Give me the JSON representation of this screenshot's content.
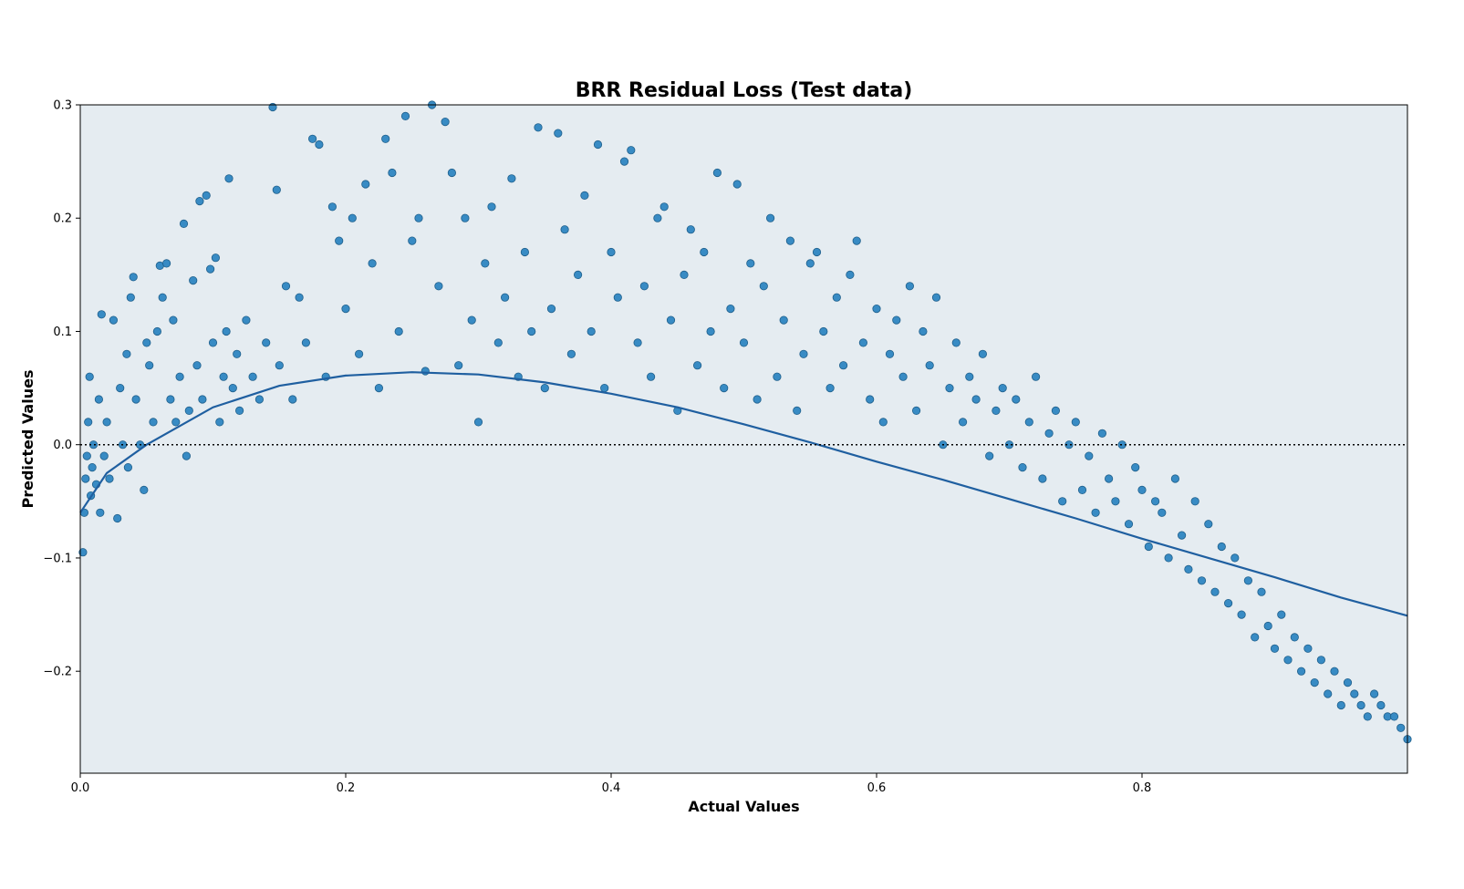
{
  "chart_data": {
    "type": "scatter",
    "title": "BRR Residual Loss (Test data)",
    "xlabel": "Actual Values",
    "ylabel": "Predicted Values",
    "xlim": [
      0.0,
      1.0
    ],
    "ylim": [
      -0.29,
      0.3
    ],
    "xticks": [
      0.0,
      0.2,
      0.4,
      0.6,
      0.8
    ],
    "xtick_labels": [
      "0.0",
      "0.2",
      "0.4",
      "0.6",
      "0.8"
    ],
    "yticks": [
      -0.2,
      -0.1,
      0.0,
      0.1,
      0.2,
      0.3
    ],
    "ytick_labels": [
      "−0.2",
      "−0.1",
      "0.0",
      "0.1",
      "0.2",
      "0.3"
    ],
    "background_color": "#e5ecf1",
    "point_color": "#2e86c1",
    "point_edge_color": "#1f5f8b",
    "line_color": "#1f5fa0",
    "reference_line": {
      "y": 0.0,
      "style": "dotted",
      "color": "#000000"
    },
    "grid": false,
    "legend": "none",
    "fit_line": {
      "x": [
        0.0,
        0.02,
        0.05,
        0.1,
        0.15,
        0.2,
        0.25,
        0.3,
        0.35,
        0.4,
        0.45,
        0.5,
        0.55,
        0.6,
        0.65,
        0.7,
        0.75,
        0.8,
        0.85,
        0.9,
        0.95,
        1.0
      ],
      "y": [
        -0.06,
        -0.025,
        0.0,
        0.033,
        0.052,
        0.061,
        0.064,
        0.062,
        0.055,
        0.045,
        0.033,
        0.018,
        0.002,
        -0.015,
        -0.031,
        -0.048,
        -0.065,
        -0.083,
        -0.1,
        -0.117,
        -0.135,
        -0.151
      ]
    },
    "series": [
      {
        "points": [
          [
            0.002,
            -0.095
          ],
          [
            0.003,
            -0.06
          ],
          [
            0.004,
            -0.03
          ],
          [
            0.005,
            -0.01
          ],
          [
            0.006,
            0.02
          ],
          [
            0.007,
            0.06
          ],
          [
            0.008,
            -0.045
          ],
          [
            0.009,
            -0.02
          ],
          [
            0.01,
            0.0
          ],
          [
            0.012,
            -0.035
          ],
          [
            0.014,
            0.04
          ],
          [
            0.015,
            -0.06
          ],
          [
            0.016,
            0.115
          ],
          [
            0.018,
            -0.01
          ],
          [
            0.02,
            0.02
          ],
          [
            0.022,
            -0.03
          ],
          [
            0.025,
            0.11
          ],
          [
            0.028,
            -0.065
          ],
          [
            0.03,
            0.05
          ],
          [
            0.032,
            0.0
          ],
          [
            0.035,
            0.08
          ],
          [
            0.036,
            -0.02
          ],
          [
            0.038,
            0.13
          ],
          [
            0.04,
            0.148
          ],
          [
            0.042,
            0.04
          ],
          [
            0.045,
            0.0
          ],
          [
            0.048,
            -0.04
          ],
          [
            0.05,
            0.09
          ],
          [
            0.052,
            0.07
          ],
          [
            0.055,
            0.02
          ],
          [
            0.058,
            0.1
          ],
          [
            0.06,
            0.158
          ],
          [
            0.062,
            0.13
          ],
          [
            0.065,
            0.16
          ],
          [
            0.068,
            0.04
          ],
          [
            0.07,
            0.11
          ],
          [
            0.072,
            0.02
          ],
          [
            0.075,
            0.06
          ],
          [
            0.078,
            0.195
          ],
          [
            0.08,
            -0.01
          ],
          [
            0.082,
            0.03
          ],
          [
            0.085,
            0.145
          ],
          [
            0.088,
            0.07
          ],
          [
            0.09,
            0.215
          ],
          [
            0.092,
            0.04
          ],
          [
            0.095,
            0.22
          ],
          [
            0.098,
            0.155
          ],
          [
            0.1,
            0.09
          ],
          [
            0.102,
            0.165
          ],
          [
            0.105,
            0.02
          ],
          [
            0.108,
            0.06
          ],
          [
            0.11,
            0.1
          ],
          [
            0.112,
            0.235
          ],
          [
            0.115,
            0.05
          ],
          [
            0.118,
            0.08
          ],
          [
            0.12,
            0.03
          ],
          [
            0.125,
            0.11
          ],
          [
            0.13,
            0.06
          ],
          [
            0.135,
            0.04
          ],
          [
            0.14,
            0.09
          ],
          [
            0.145,
            0.298
          ],
          [
            0.148,
            0.225
          ],
          [
            0.15,
            0.07
          ],
          [
            0.155,
            0.14
          ],
          [
            0.16,
            0.04
          ],
          [
            0.165,
            0.13
          ],
          [
            0.17,
            0.09
          ],
          [
            0.175,
            0.27
          ],
          [
            0.18,
            0.265
          ],
          [
            0.185,
            0.06
          ],
          [
            0.19,
            0.21
          ],
          [
            0.195,
            0.18
          ],
          [
            0.2,
            0.12
          ],
          [
            0.205,
            0.2
          ],
          [
            0.21,
            0.08
          ],
          [
            0.215,
            0.23
          ],
          [
            0.22,
            0.16
          ],
          [
            0.225,
            0.05
          ],
          [
            0.23,
            0.27
          ],
          [
            0.235,
            0.24
          ],
          [
            0.24,
            0.1
          ],
          [
            0.245,
            0.29
          ],
          [
            0.25,
            0.18
          ],
          [
            0.255,
            0.2
          ],
          [
            0.26,
            0.065
          ],
          [
            0.265,
            0.3
          ],
          [
            0.27,
            0.14
          ],
          [
            0.275,
            0.285
          ],
          [
            0.28,
            0.24
          ],
          [
            0.285,
            0.07
          ],
          [
            0.29,
            0.2
          ],
          [
            0.295,
            0.11
          ],
          [
            0.3,
            0.02
          ],
          [
            0.305,
            0.16
          ],
          [
            0.31,
            0.21
          ],
          [
            0.315,
            0.09
          ],
          [
            0.32,
            0.13
          ],
          [
            0.325,
            0.235
          ],
          [
            0.33,
            0.06
          ],
          [
            0.335,
            0.17
          ],
          [
            0.34,
            0.1
          ],
          [
            0.345,
            0.28
          ],
          [
            0.35,
            0.05
          ],
          [
            0.355,
            0.12
          ],
          [
            0.36,
            0.275
          ],
          [
            0.365,
            0.19
          ],
          [
            0.37,
            0.08
          ],
          [
            0.375,
            0.15
          ],
          [
            0.38,
            0.22
          ],
          [
            0.385,
            0.1
          ],
          [
            0.39,
            0.265
          ],
          [
            0.395,
            0.05
          ],
          [
            0.4,
            0.17
          ],
          [
            0.405,
            0.13
          ],
          [
            0.41,
            0.25
          ],
          [
            0.415,
            0.26
          ],
          [
            0.42,
            0.09
          ],
          [
            0.425,
            0.14
          ],
          [
            0.43,
            0.06
          ],
          [
            0.435,
            0.2
          ],
          [
            0.44,
            0.21
          ],
          [
            0.445,
            0.11
          ],
          [
            0.45,
            0.03
          ],
          [
            0.455,
            0.15
          ],
          [
            0.46,
            0.19
          ],
          [
            0.465,
            0.07
          ],
          [
            0.47,
            0.17
          ],
          [
            0.475,
            0.1
          ],
          [
            0.48,
            0.24
          ],
          [
            0.485,
            0.05
          ],
          [
            0.49,
            0.12
          ],
          [
            0.495,
            0.23
          ],
          [
            0.5,
            0.09
          ],
          [
            0.505,
            0.16
          ],
          [
            0.51,
            0.04
          ],
          [
            0.515,
            0.14
          ],
          [
            0.52,
            0.2
          ],
          [
            0.525,
            0.06
          ],
          [
            0.53,
            0.11
          ],
          [
            0.535,
            0.18
          ],
          [
            0.54,
            0.03
          ],
          [
            0.545,
            0.08
          ],
          [
            0.55,
            0.16
          ],
          [
            0.555,
            0.17
          ],
          [
            0.56,
            0.1
          ],
          [
            0.565,
            0.05
          ],
          [
            0.57,
            0.13
          ],
          [
            0.575,
            0.07
          ],
          [
            0.58,
            0.15
          ],
          [
            0.585,
            0.18
          ],
          [
            0.59,
            0.09
          ],
          [
            0.595,
            0.04
          ],
          [
            0.6,
            0.12
          ],
          [
            0.605,
            0.02
          ],
          [
            0.61,
            0.08
          ],
          [
            0.615,
            0.11
          ],
          [
            0.62,
            0.06
          ],
          [
            0.625,
            0.14
          ],
          [
            0.63,
            0.03
          ],
          [
            0.635,
            0.1
          ],
          [
            0.64,
            0.07
          ],
          [
            0.645,
            0.13
          ],
          [
            0.65,
            0.0
          ],
          [
            0.655,
            0.05
          ],
          [
            0.66,
            0.09
          ],
          [
            0.665,
            0.02
          ],
          [
            0.67,
            0.06
          ],
          [
            0.675,
            0.04
          ],
          [
            0.68,
            0.08
          ],
          [
            0.685,
            -0.01
          ],
          [
            0.69,
            0.03
          ],
          [
            0.695,
            0.05
          ],
          [
            0.7,
            0.0
          ],
          [
            0.705,
            0.04
          ],
          [
            0.71,
            -0.02
          ],
          [
            0.715,
            0.02
          ],
          [
            0.72,
            0.06
          ],
          [
            0.725,
            -0.03
          ],
          [
            0.73,
            0.01
          ],
          [
            0.735,
            0.03
          ],
          [
            0.74,
            -0.05
          ],
          [
            0.745,
            0.0
          ],
          [
            0.75,
            0.02
          ],
          [
            0.755,
            -0.04
          ],
          [
            0.76,
            -0.01
          ],
          [
            0.765,
            -0.06
          ],
          [
            0.77,
            0.01
          ],
          [
            0.775,
            -0.03
          ],
          [
            0.78,
            -0.05
          ],
          [
            0.785,
            0.0
          ],
          [
            0.79,
            -0.07
          ],
          [
            0.795,
            -0.02
          ],
          [
            0.8,
            -0.04
          ],
          [
            0.805,
            -0.09
          ],
          [
            0.81,
            -0.05
          ],
          [
            0.815,
            -0.06
          ],
          [
            0.82,
            -0.1
          ],
          [
            0.825,
            -0.03
          ],
          [
            0.83,
            -0.08
          ],
          [
            0.835,
            -0.11
          ],
          [
            0.84,
            -0.05
          ],
          [
            0.845,
            -0.12
          ],
          [
            0.85,
            -0.07
          ],
          [
            0.855,
            -0.13
          ],
          [
            0.86,
            -0.09
          ],
          [
            0.865,
            -0.14
          ],
          [
            0.87,
            -0.1
          ],
          [
            0.875,
            -0.15
          ],
          [
            0.88,
            -0.12
          ],
          [
            0.885,
            -0.17
          ],
          [
            0.89,
            -0.13
          ],
          [
            0.895,
            -0.16
          ],
          [
            0.9,
            -0.18
          ],
          [
            0.905,
            -0.15
          ],
          [
            0.91,
            -0.19
          ],
          [
            0.915,
            -0.17
          ],
          [
            0.92,
            -0.2
          ],
          [
            0.925,
            -0.18
          ],
          [
            0.93,
            -0.21
          ],
          [
            0.935,
            -0.19
          ],
          [
            0.94,
            -0.22
          ],
          [
            0.945,
            -0.2
          ],
          [
            0.95,
            -0.23
          ],
          [
            0.955,
            -0.21
          ],
          [
            0.96,
            -0.22
          ],
          [
            0.965,
            -0.23
          ],
          [
            0.97,
            -0.24
          ],
          [
            0.975,
            -0.22
          ],
          [
            0.98,
            -0.23
          ],
          [
            0.985,
            -0.24
          ],
          [
            0.99,
            -0.24
          ],
          [
            0.995,
            -0.25
          ],
          [
            1.0,
            -0.26
          ]
        ]
      }
    ]
  }
}
